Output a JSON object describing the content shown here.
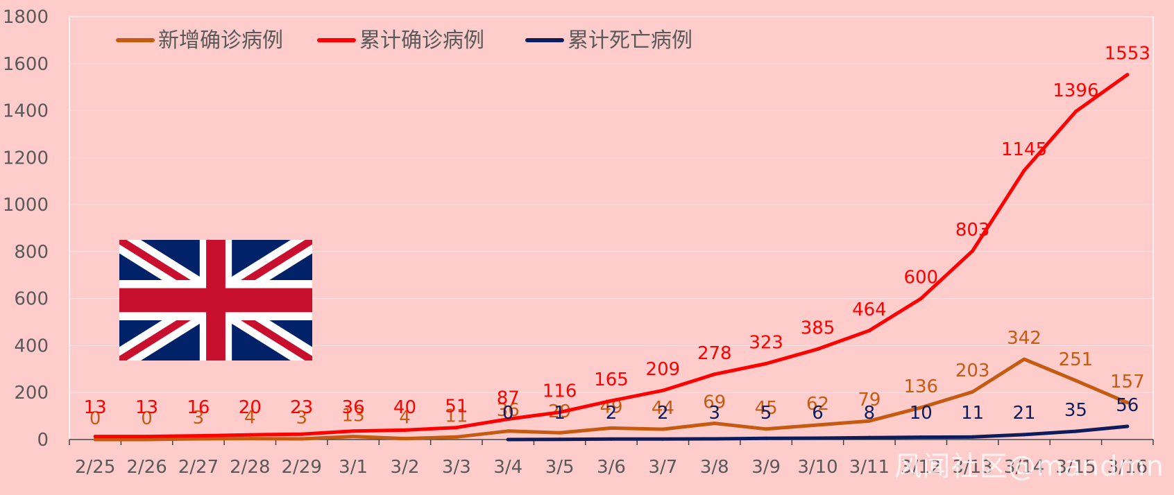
{
  "watermark": "风闻社区@mandmn",
  "flag": "uk-union-jack",
  "colors": {
    "background": "#ffcccc",
    "daily_new": "#c55a11",
    "cumulative_confirmed": "#ff0000",
    "cumulative_deaths": "#0d1d5c",
    "axis_text": "#595959",
    "grid": "#f2e2e2"
  },
  "chart_data": {
    "type": "line",
    "title": "",
    "xlabel": "",
    "ylabel": "",
    "ylim": [
      0,
      1800
    ],
    "yticks": [
      0,
      200,
      400,
      600,
      800,
      1000,
      1200,
      1400,
      1600,
      1800
    ],
    "grid": true,
    "legend_position": "top-left",
    "categories": [
      "2/25",
      "2/26",
      "2/27",
      "2/28",
      "2/29",
      "3/1",
      "3/2",
      "3/3",
      "3/4",
      "3/5",
      "3/6",
      "3/7",
      "3/8",
      "3/9",
      "3/10",
      "3/11",
      "3/12",
      "3/13",
      "3/14",
      "3/15",
      "3/16"
    ],
    "series": [
      {
        "name": "新增确诊病例",
        "values": [
          0,
          0,
          3,
          4,
          3,
          13,
          4,
          11,
          36,
          29,
          49,
          44,
          69,
          45,
          62,
          79,
          136,
          203,
          342,
          251,
          157
        ]
      },
      {
        "name": "累计确诊病例",
        "values": [
          13,
          13,
          16,
          20,
          23,
          36,
          40,
          51,
          87,
          116,
          165,
          209,
          278,
          323,
          385,
          464,
          600,
          803,
          1145,
          1396,
          1553
        ]
      },
      {
        "name": "累计死亡病例",
        "values": [
          null,
          null,
          null,
          null,
          null,
          null,
          null,
          null,
          0,
          1,
          2,
          2,
          3,
          5,
          6,
          8,
          10,
          11,
          21,
          35,
          56
        ]
      }
    ]
  }
}
